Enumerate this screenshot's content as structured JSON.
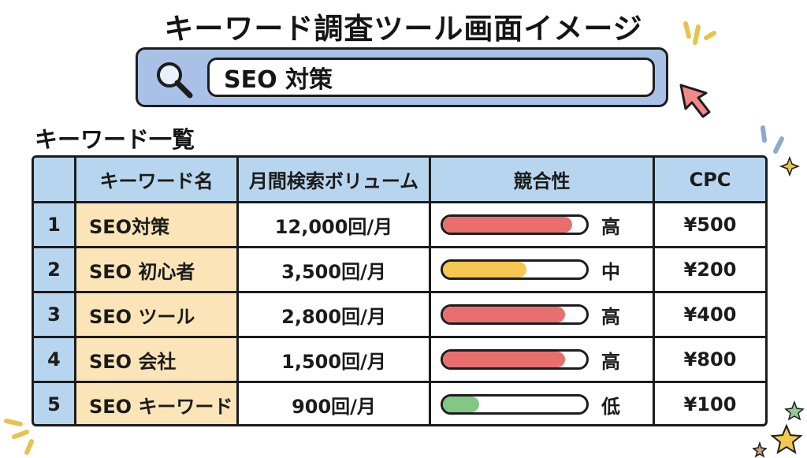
{
  "title": "キーワード調査ツール画面イメージ",
  "search": {
    "value": "SEO 対策"
  },
  "section_title": "キーワード一覧",
  "table": {
    "headers": {
      "num": "",
      "name": "キーワード名",
      "volume": "月間検索ボリューム",
      "competition": "競合性",
      "cpc": "CPC"
    },
    "rows": [
      {
        "num": "1",
        "name": "SEO対策",
        "volume": "12,000回/月",
        "level": "高",
        "fill": 0.9,
        "color": "#e96f6f",
        "cpc": "¥500"
      },
      {
        "num": "2",
        "name": "SEO 初心者",
        "volume": "3,500回/月",
        "level": "中",
        "fill": 0.58,
        "color": "#f5c750",
        "cpc": "¥200"
      },
      {
        "num": "3",
        "name": "SEO ツール",
        "volume": "2,800回/月",
        "level": "高",
        "fill": 0.85,
        "color": "#e96f6f",
        "cpc": "¥400"
      },
      {
        "num": "4",
        "name": "SEO 会社",
        "volume": "1,500回/月",
        "level": "高",
        "fill": 0.85,
        "color": "#e96f6f",
        "cpc": "¥800"
      },
      {
        "num": "5",
        "name": "SEO キーワード",
        "volume": "900回/月",
        "level": "低",
        "fill": 0.25,
        "color": "#82c785",
        "cpc": "¥100"
      }
    ]
  },
  "icons": {
    "search": "magnifier-icon",
    "cursor": "arrow-cursor-icon"
  },
  "colors": {
    "header_bg": "#b7d5ee",
    "name_col_bg": "#fbe5b8",
    "search_frame": "#a9c1e7"
  }
}
